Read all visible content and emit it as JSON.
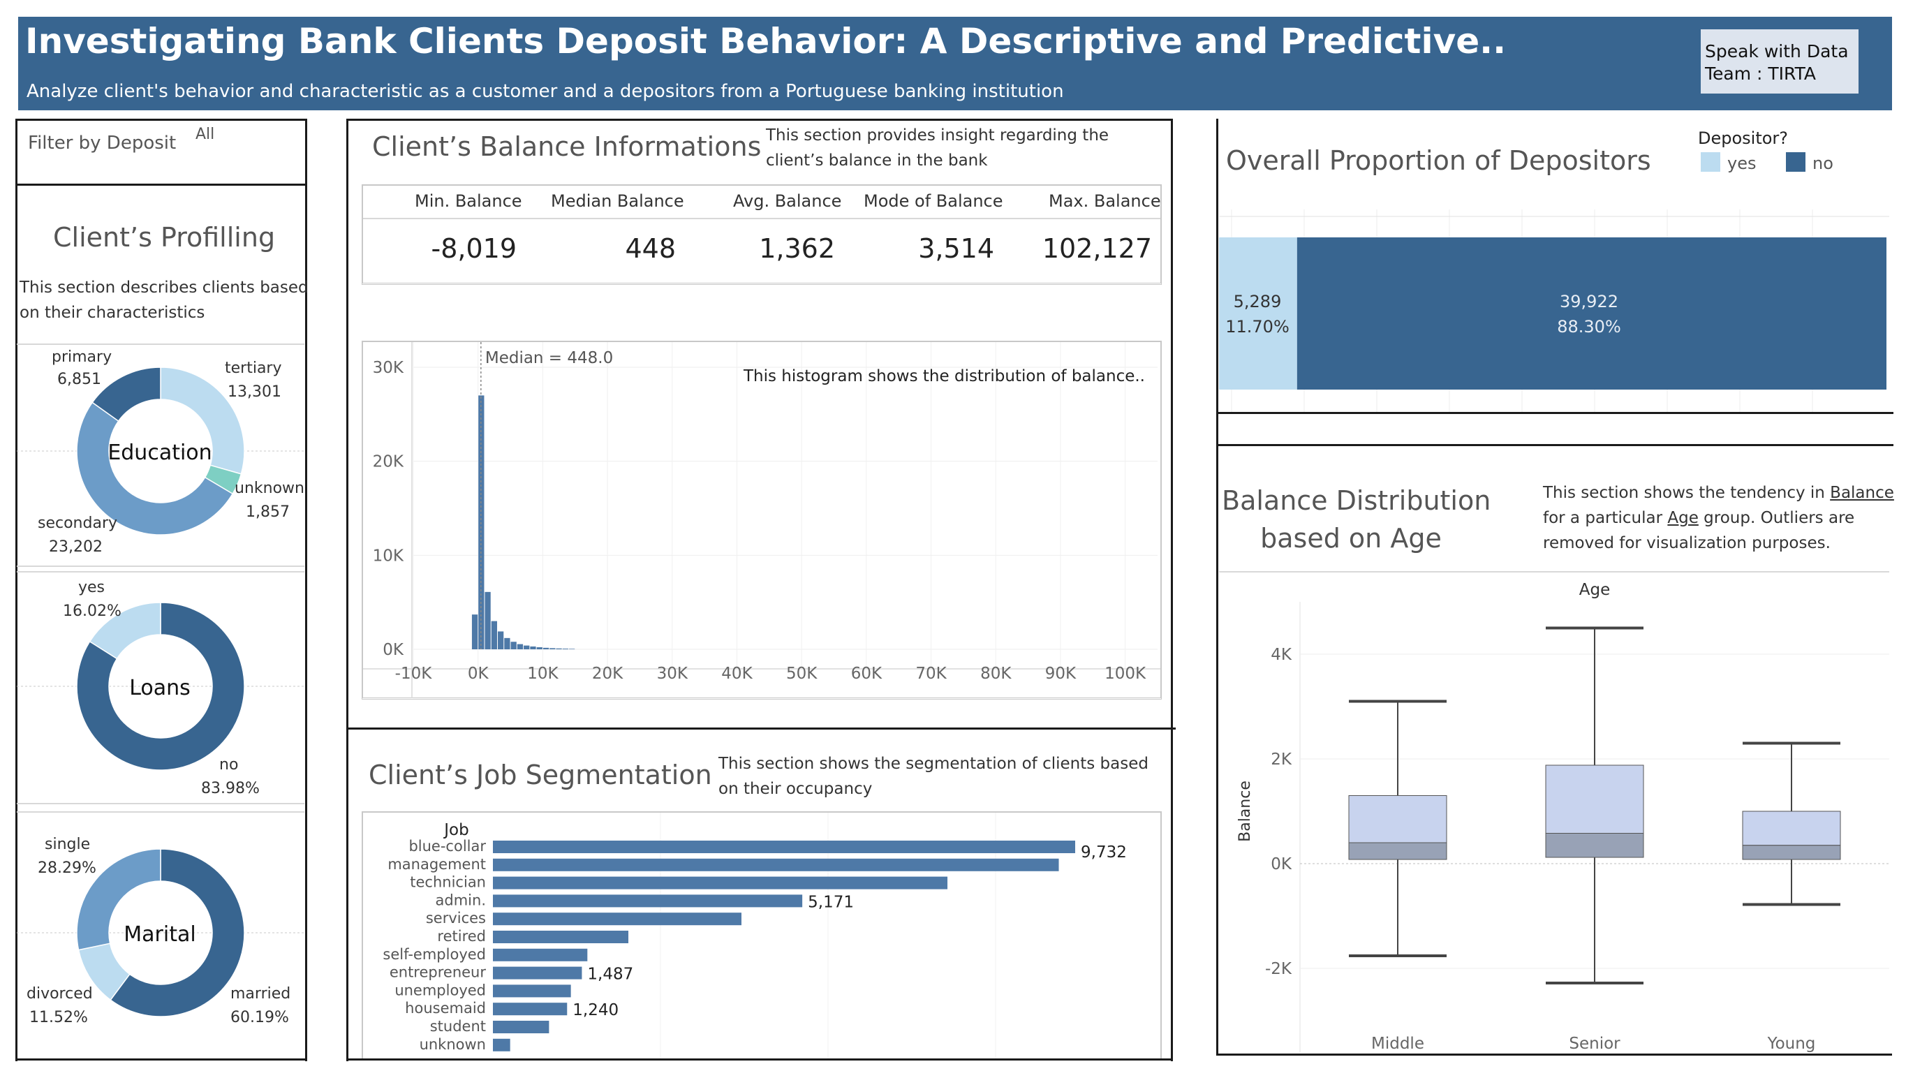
{
  "header": {
    "title": "Investigating Bank Clients Deposit Behavior: A Descriptive and Predictive..",
    "subtitle": "Analyze client's behavior and characteristic as a customer and a depositors from a Portuguese banking institution",
    "speak_line1": "Speak with Data",
    "speak_line2": "Team : TIRTA"
  },
  "filter": {
    "label": "Filter by Deposit",
    "value": "All"
  },
  "profiling": {
    "title": "Client’s Profilling",
    "desc_line1": "This section describes clients based",
    "desc_line2": "on their characteristics"
  },
  "education": {
    "center": "Education",
    "slices": [
      {
        "name": "tertiary",
        "value": 13301,
        "label": "13,301",
        "color": "#bcdcf0"
      },
      {
        "name": "unknown",
        "value": 1857,
        "label": "1,857",
        "color": "#7ecfc3"
      },
      {
        "name": "secondary",
        "value": 23202,
        "label": "23,202",
        "color": "#6c9cc8"
      },
      {
        "name": "primary",
        "value": 6851,
        "label": "6,851",
        "color": "#386590"
      }
    ]
  },
  "loans": {
    "center": "Loans",
    "slices": [
      {
        "name": "no",
        "value": 83.98,
        "label": "83.98%",
        "color": "#386590"
      },
      {
        "name": "yes",
        "value": 16.02,
        "label": "16.02%",
        "color": "#bcdcf0"
      }
    ]
  },
  "marital": {
    "center": "Marital",
    "slices": [
      {
        "name": "married",
        "value": 60.19,
        "label": "60.19%",
        "color": "#386590"
      },
      {
        "name": "divorced",
        "value": 11.52,
        "label": "11.52%",
        "color": "#bcdcf0"
      },
      {
        "name": "single",
        "value": 28.29,
        "label": "28.29%",
        "color": "#6c9cc8"
      }
    ]
  },
  "balance_info": {
    "title": "Client’s Balance Informations",
    "desc_line1": "This section provides insight regarding the",
    "desc_line2": "client’s balance in the bank",
    "kpis": [
      {
        "label": "Min. Balance",
        "value": "-8,019"
      },
      {
        "label": "Median Balance",
        "value": "448"
      },
      {
        "label": "Avg. Balance",
        "value": "1,362"
      },
      {
        "label": "Mode of Balance",
        "value": "3,514"
      },
      {
        "label": "Max. Balance",
        "value": "102,127"
      }
    ]
  },
  "histogram": {
    "note": "This histogram shows the distribution of balance..",
    "median_label": "Median = 448.0"
  },
  "jobs": {
    "title": "Client’s Job Segmentation",
    "desc_line1": "This section shows the segmentation of clients based",
    "desc_line2": "on their occupancy"
  },
  "depositors": {
    "title": "Overall Proportion of Depositors",
    "legend_title": "Depositor?",
    "legend_yes": "yes",
    "legend_no": "no",
    "yes_count": "5,289",
    "yes_pct": "11.70%",
    "no_count": "39,922",
    "no_pct": "88.30%",
    "yes_value": 5289,
    "no_value": 39922,
    "yes_color": "#bcdcf0",
    "no_color": "#386590"
  },
  "age_section": {
    "title_line1": "Balance Distribution",
    "title_line2": "based on Age",
    "desc_pre1": "This section shows the tendency in ",
    "desc_link1": "Balance",
    "desc_pre2": "for a particular ",
    "desc_link2": "Age",
    "desc_post2": " group. Outliers are",
    "desc_line3": "removed for visualization purposes."
  },
  "chart_data": [
    {
      "type": "bar",
      "title": "",
      "xlabel": "",
      "ylabel": "",
      "x_ticks": [
        "-10K",
        "0K",
        "10K",
        "20K",
        "30K",
        "40K",
        "50K",
        "60K",
        "70K",
        "80K",
        "90K",
        "100K"
      ],
      "y_ticks": [
        "30K",
        "20K",
        "10K",
        "0K"
      ],
      "xlim": [
        -10000,
        105000
      ],
      "ylim": [
        0,
        30000
      ],
      "bin_width": 1000,
      "bins_start": [
        -1000,
        0,
        1000,
        2000,
        3000,
        4000,
        5000,
        6000,
        7000,
        8000,
        9000,
        10000,
        11000,
        12000,
        13000,
        14000
      ],
      "values": [
        3700,
        27000,
        6100,
        3000,
        1900,
        1200,
        800,
        550,
        400,
        300,
        220,
        160,
        120,
        90,
        70,
        50
      ],
      "median": 448
    },
    {
      "type": "bar",
      "orientation": "horizontal",
      "title": "",
      "ylabel": "Job",
      "categories": [
        "blue-collar",
        "management",
        "technician",
        "admin.",
        "services",
        "retired",
        "self-employed",
        "entrepreneur",
        "unemployed",
        "housemaid",
        "student",
        "unknown"
      ],
      "values": [
        9732,
        9458,
        7597,
        5171,
        4154,
        2264,
        1579,
        1487,
        1303,
        1240,
        938,
        288
      ],
      "data_labels": {
        "blue-collar": "9,732",
        "admin.": "5,171",
        "entrepreneur": "1,487",
        "housemaid": "1,240"
      }
    },
    {
      "type": "box",
      "title": "",
      "xlabel": "Age",
      "ylabel": "Balance",
      "categories": [
        "Middle",
        "Senior",
        "Young"
      ],
      "y_ticks": [
        "4K",
        "2K",
        "0K",
        "-2K"
      ],
      "ylim": [
        -3000,
        5000
      ],
      "boxes": [
        {
          "name": "Middle",
          "whisker_low": -1760,
          "q1": 80,
          "median": 400,
          "q3": 1300,
          "whisker_high": 3100
        },
        {
          "name": "Senior",
          "whisker_low": -2280,
          "q1": 120,
          "median": 580,
          "q3": 1880,
          "whisker_high": 4500
        },
        {
          "name": "Young",
          "whisker_low": -780,
          "q1": 80,
          "median": 350,
          "q3": 1000,
          "whisker_high": 2300
        }
      ]
    }
  ]
}
